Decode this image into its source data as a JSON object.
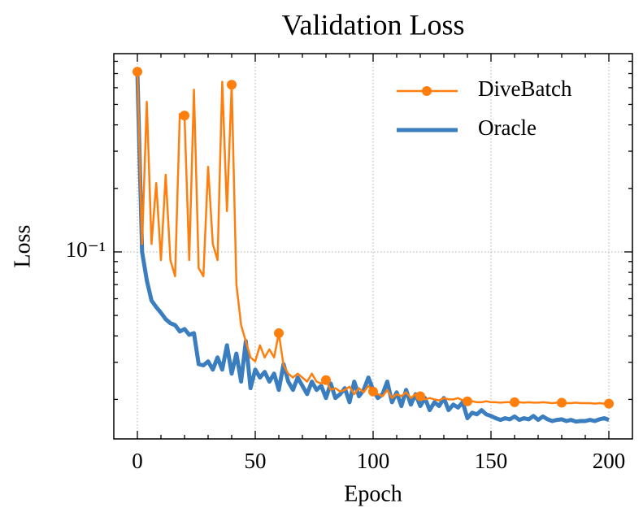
{
  "chart_data": {
    "type": "line",
    "title": "Validation Loss",
    "x_label": "Epoch",
    "y_label": "Loss",
    "x": [
      0,
      2,
      4,
      6,
      8,
      10,
      12,
      14,
      16,
      18,
      20,
      22,
      24,
      26,
      28,
      30,
      32,
      34,
      36,
      38,
      40,
      42,
      44,
      46,
      48,
      50,
      52,
      54,
      56,
      58,
      60,
      62,
      64,
      66,
      68,
      70,
      72,
      74,
      76,
      78,
      80,
      82,
      84,
      86,
      88,
      90,
      92,
      94,
      96,
      98,
      100,
      102,
      104,
      106,
      108,
      110,
      112,
      114,
      116,
      118,
      120,
      122,
      124,
      126,
      128,
      130,
      132,
      134,
      136,
      138,
      140,
      142,
      144,
      146,
      148,
      150,
      152,
      154,
      156,
      158,
      160,
      162,
      164,
      166,
      168,
      170,
      172,
      174,
      176,
      178,
      180,
      182,
      184,
      186,
      188,
      190,
      192,
      194,
      196,
      198,
      200
    ],
    "series": [
      {
        "name": "DiveBatch",
        "color": "#ff7f0e",
        "line_width": 2.5,
        "marker": "circle",
        "markevery": 10,
        "values": [
          0.714,
          0.109,
          0.514,
          0.109,
          0.212,
          0.0915,
          0.232,
          0.0915,
          0.0767,
          0.45,
          0.443,
          0.0915,
          0.588,
          0.0838,
          0.0767,
          0.253,
          0.109,
          0.0915,
          0.64,
          0.156,
          0.62,
          0.0702,
          0.045,
          0.0377,
          0.0316,
          0.0303,
          0.0361,
          0.0316,
          0.0345,
          0.0316,
          0.0412,
          0.029,
          0.0265,
          0.0254,
          0.0265,
          0.0254,
          0.0243,
          0.0265,
          0.0243,
          0.0238,
          0.0247,
          0.0222,
          0.0226,
          0.0218,
          0.0222,
          0.023,
          0.0212,
          0.0226,
          0.0216,
          0.0232,
          0.0218,
          0.0212,
          0.0207,
          0.0222,
          0.0203,
          0.0212,
          0.0207,
          0.0216,
          0.0203,
          0.0212,
          0.0207,
          0.02,
          0.0203,
          0.02,
          0.0198,
          0.0203,
          0.02,
          0.02,
          0.0203,
          0.0198,
          0.0196,
          0.0196,
          0.0194,
          0.0194,
          0.0196,
          0.0194,
          0.0194,
          0.0193,
          0.0194,
          0.0194,
          0.0194,
          0.0194,
          0.0193,
          0.0194,
          0.0193,
          0.0193,
          0.0194,
          0.0193,
          0.0192,
          0.0193,
          0.0193,
          0.0192,
          0.0192,
          0.0193,
          0.0192,
          0.0192,
          0.0192,
          0.0191,
          0.0192,
          0.0191,
          0.0191
        ]
      },
      {
        "name": "Oracle",
        "color": "#3a7ebf",
        "line_width": 5,
        "values": [
          0.714,
          0.1,
          0.0733,
          0.0588,
          0.0548,
          0.0515,
          0.048,
          0.0459,
          0.045,
          0.042,
          0.0431,
          0.0405,
          0.0412,
          0.0294,
          0.029,
          0.0303,
          0.0277,
          0.0316,
          0.0277,
          0.0361,
          0.0265,
          0.033,
          0.0243,
          0.0377,
          0.0226,
          0.0277,
          0.0254,
          0.027,
          0.0243,
          0.0265,
          0.0222,
          0.0294,
          0.0243,
          0.0222,
          0.0254,
          0.0232,
          0.0212,
          0.0243,
          0.0222,
          0.0232,
          0.0203,
          0.0238,
          0.0203,
          0.0212,
          0.0226,
          0.0194,
          0.0243,
          0.0207,
          0.0222,
          0.0254,
          0.0222,
          0.0203,
          0.0212,
          0.0243,
          0.0194,
          0.0216,
          0.0186,
          0.0222,
          0.0189,
          0.0212,
          0.0186,
          0.0203,
          0.0178,
          0.0194,
          0.0186,
          0.0203,
          0.0178,
          0.0189,
          0.0183,
          0.0194,
          0.0163,
          0.0173,
          0.017,
          0.0178,
          0.017,
          0.0167,
          0.0163,
          0.016,
          0.0163,
          0.0161,
          0.0166,
          0.016,
          0.0163,
          0.0161,
          0.0167,
          0.016,
          0.0166,
          0.0161,
          0.0158,
          0.016,
          0.0161,
          0.0158,
          0.016,
          0.0157,
          0.0158,
          0.0158,
          0.016,
          0.0158,
          0.0161,
          0.0163,
          0.016
        ]
      }
    ],
    "xlim": [
      -10,
      210
    ],
    "xticks": [
      0,
      50,
      100,
      150,
      200
    ],
    "xminorticks": [
      10,
      20,
      30,
      40,
      60,
      70,
      80,
      90,
      110,
      120,
      130,
      140,
      160,
      170,
      180,
      190
    ],
    "ylim": [
      0.013,
      0.87
    ],
    "yscale": "log",
    "yticks": [
      {
        "value": 0.1,
        "label": "10⁻¹"
      }
    ],
    "yminorticks": [
      0.02,
      0.03,
      0.04,
      0.05,
      0.06,
      0.07,
      0.08,
      0.09,
      0.2,
      0.3,
      0.4,
      0.5,
      0.6,
      0.7,
      0.8
    ],
    "grid": true,
    "legend": "upper right"
  }
}
